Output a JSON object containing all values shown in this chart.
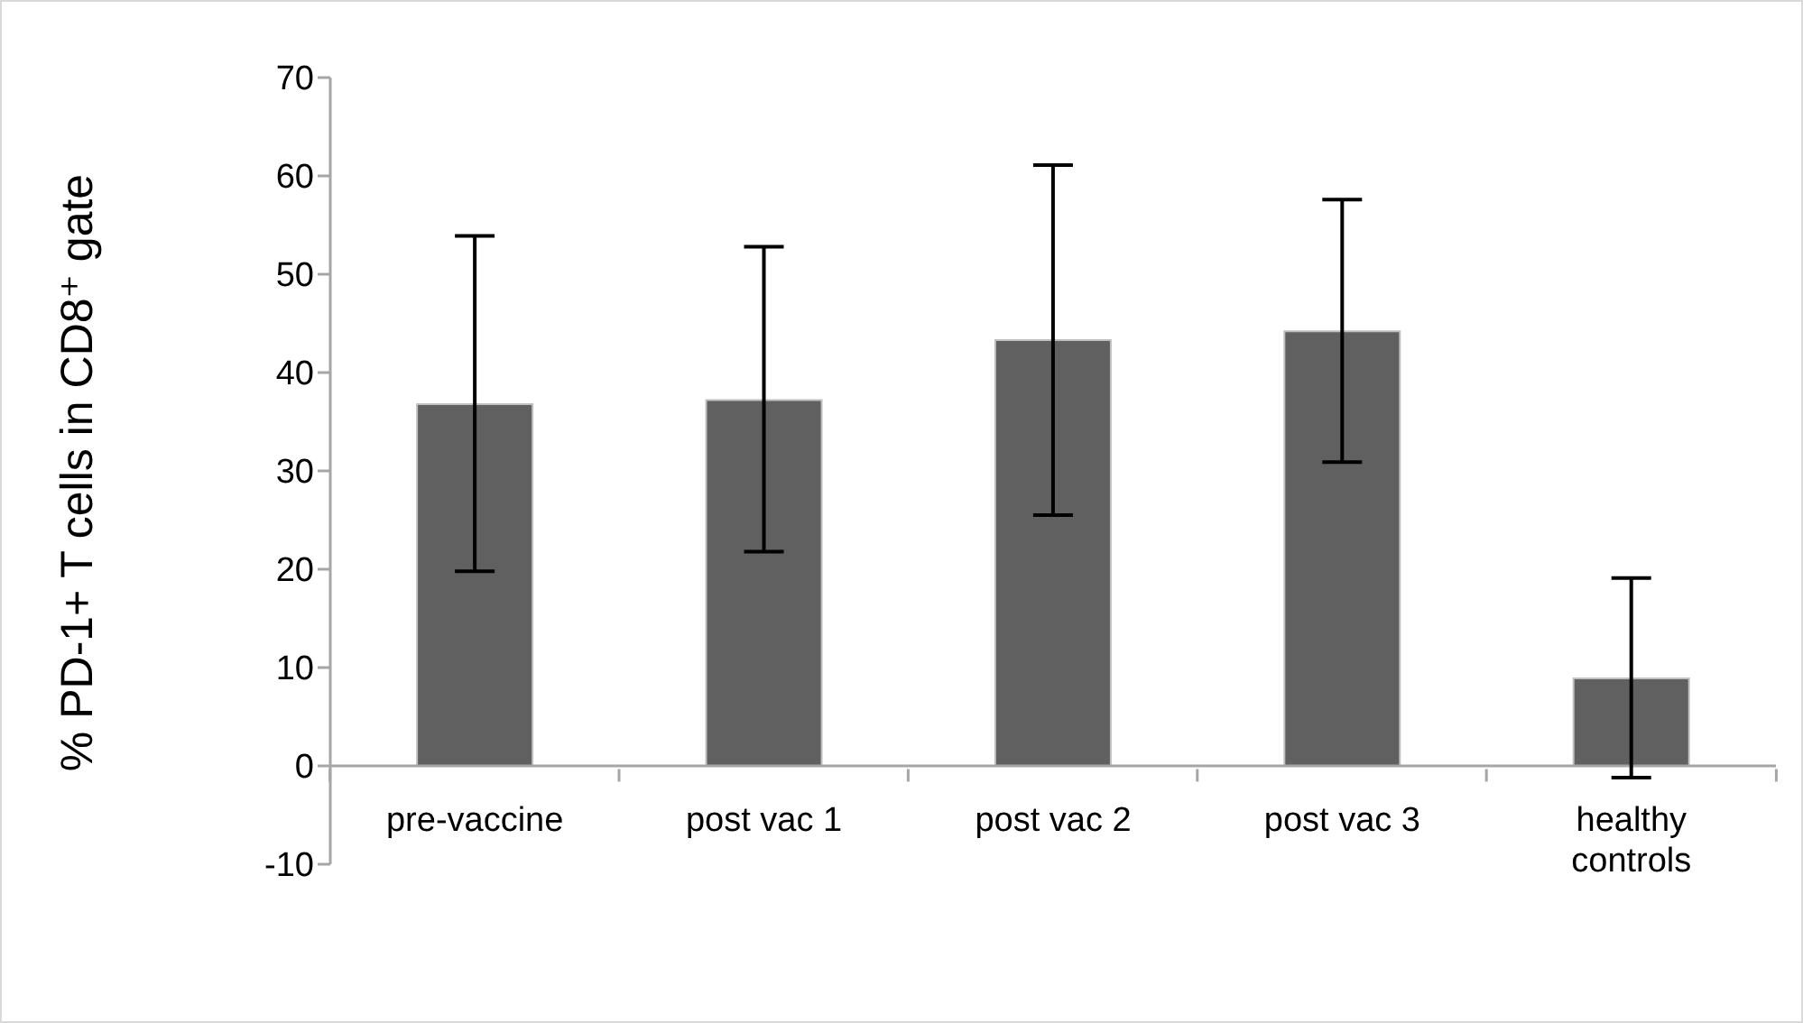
{
  "chart_data": {
    "type": "bar",
    "ylabel": "% PD-1+ T cells in CD8⁺ gate",
    "categories": [
      "pre-vaccine",
      "post vac 1",
      "post vac 2",
      "post vac 3",
      "healthy controls"
    ],
    "values": [
      36.8,
      37.2,
      43.3,
      44.2,
      8.9
    ],
    "errors": [
      [
        19.8,
        53.9
      ],
      [
        21.8,
        52.8
      ],
      [
        25.5,
        61.1
      ],
      [
        30.9,
        57.6
      ],
      [
        -1.2,
        19.1
      ]
    ],
    "color": "#606060",
    "ylim": [
      -10,
      70
    ],
    "yticks": [
      -10,
      0,
      10,
      20,
      30,
      40,
      50,
      60,
      70
    ]
  }
}
